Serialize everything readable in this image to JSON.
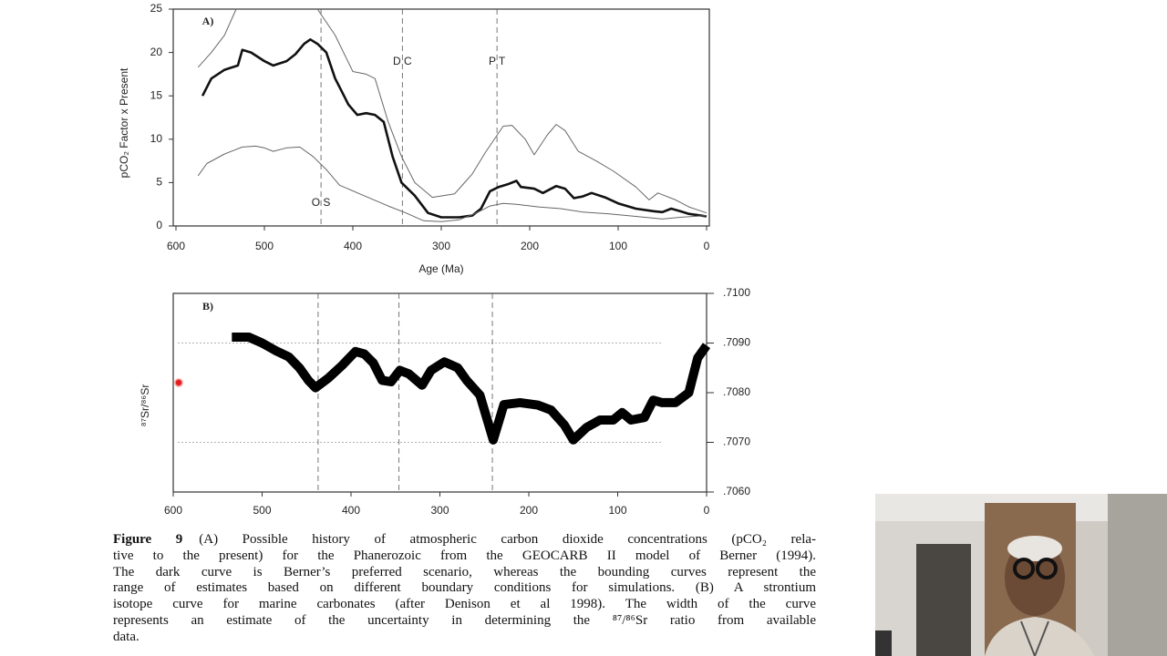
{
  "chart_data": [
    {
      "type": "line",
      "panel_label": "A)",
      "ylabel": "pCO₂ Factor x Present",
      "xlabel": "Age (Ma)",
      "xlim": [
        600,
        0
      ],
      "xticks": [
        600,
        500,
        400,
        300,
        200,
        100,
        0
      ],
      "ylim": [
        0,
        25
      ],
      "yticks": [
        0,
        5,
        10,
        15,
        20,
        25
      ],
      "annotations": [
        {
          "x": 436,
          "label": "O S"
        },
        {
          "x": 344,
          "label": "D C"
        },
        {
          "x": 237,
          "label": "P T"
        }
      ],
      "series": [
        {
          "color": "#666666",
          "line_width": 1,
          "x": [
            575,
            560,
            545,
            532,
            486,
            440,
            420,
            400,
            385,
            375,
            360,
            345,
            330,
            310,
            285,
            265,
            250,
            230,
            220,
            205,
            195,
            180,
            170,
            160,
            145,
            125,
            105,
            80,
            65,
            55,
            35,
            20,
            0
          ],
          "values": [
            18.3,
            20,
            22,
            25,
            null,
            25,
            22,
            17.8,
            17.5,
            17,
            12,
            8,
            5,
            3.3,
            3.7,
            6,
            8.5,
            11.5,
            11.6,
            10,
            8.2,
            10.5,
            11.7,
            11,
            8.6,
            7.5,
            6.3,
            4.5,
            3,
            3.8,
            3,
            2.2,
            1.5
          ]
        },
        {
          "color": "#111111",
          "line_width": 2.6,
          "x": [
            570,
            560,
            545,
            530,
            525,
            515,
            500,
            490,
            475,
            465,
            455,
            448,
            440,
            430,
            420,
            415,
            405,
            395,
            385,
            375,
            365,
            355,
            345,
            330,
            315,
            300,
            280,
            265,
            255,
            245,
            235,
            225,
            215,
            210,
            195,
            185,
            170,
            160,
            150,
            140,
            130,
            115,
            100,
            80,
            60,
            50,
            40,
            30,
            20,
            0
          ],
          "values": [
            15,
            17,
            18,
            18.5,
            20.3,
            20,
            19,
            18.5,
            19,
            19.8,
            21,
            21.5,
            21,
            20,
            17,
            16,
            14,
            12.8,
            13,
            12.8,
            12,
            8,
            5,
            3.5,
            1.5,
            1,
            1,
            1.2,
            2,
            4,
            4.5,
            4.8,
            5.2,
            4.5,
            4.3,
            3.8,
            4.6,
            4.3,
            3.2,
            3.4,
            3.8,
            3.3,
            2.6,
            2,
            1.7,
            1.6,
            2,
            1.7,
            1.4,
            1.1
          ]
        },
        {
          "color": "#666666",
          "line_width": 1,
          "x": [
            575,
            565,
            545,
            525,
            510,
            500,
            490,
            475,
            460,
            445,
            430,
            415,
            390,
            360,
            340,
            320,
            300,
            280,
            260,
            245,
            230,
            215,
            190,
            165,
            140,
            110,
            80,
            50,
            30,
            0
          ],
          "values": [
            5.8,
            7.2,
            8.3,
            9.1,
            9.2,
            9,
            8.6,
            9,
            9.1,
            8,
            6.5,
            4.7,
            3.6,
            2.3,
            1.5,
            0.6,
            0.5,
            0.7,
            1.5,
            2.3,
            2.6,
            2.5,
            2.2,
            2,
            1.6,
            1.4,
            1.1,
            0.8,
            1,
            1.2
          ]
        }
      ]
    },
    {
      "type": "line",
      "panel_label": "B)",
      "ylabel": "⁸⁷Sr/⁸⁶Sr",
      "xlim": [
        600,
        0
      ],
      "xticks": [
        600,
        500,
        400,
        300,
        200,
        100,
        0
      ],
      "ylim": [
        0.706,
        0.71
      ],
      "yticks": [
        {
          "value": 0.706,
          "label": ".7060"
        },
        {
          "value": 0.707,
          "label": ".7070"
        },
        {
          "value": 0.708,
          "label": ".7080"
        },
        {
          "value": 0.709,
          "label": ".7090"
        },
        {
          "value": 0.71,
          "label": ".7100"
        }
      ],
      "gridlines": [
        0.707,
        0.709
      ],
      "annotations": [
        {
          "x": 437
        },
        {
          "x": 346
        },
        {
          "x": 241
        }
      ],
      "series": [
        {
          "color": "#000000",
          "line_width": 10,
          "x": [
            534,
            515,
            500,
            485,
            470,
            458,
            448,
            440,
            425,
            410,
            395,
            385,
            375,
            365,
            355,
            345,
            335,
            320,
            310,
            295,
            280,
            270,
            255,
            240,
            228,
            210,
            190,
            175,
            160,
            150,
            135,
            120,
            105,
            95,
            85,
            70,
            60,
            50,
            35,
            20,
            10,
            0
          ],
          "values": [
            0.70912,
            0.70912,
            0.709,
            0.70885,
            0.70872,
            0.7085,
            0.70825,
            0.7081,
            0.7083,
            0.70855,
            0.70883,
            0.70878,
            0.7086,
            0.70825,
            0.70822,
            0.70845,
            0.70838,
            0.70815,
            0.70845,
            0.70862,
            0.7085,
            0.70825,
            0.70795,
            0.70705,
            0.70776,
            0.7078,
            0.70775,
            0.70765,
            0.70735,
            0.70705,
            0.7073,
            0.70745,
            0.70745,
            0.7076,
            0.70745,
            0.7075,
            0.70785,
            0.7078,
            0.7078,
            0.708,
            0.7087,
            0.70895
          ]
        }
      ]
    }
  ],
  "caption": {
    "label": "Figure 9",
    "lines": [
      "(A) Possible history of atmospheric carbon dioxide concentrations (pCO₂ rela-",
      "tive to the present) for the Phanerozoic from the GEOCARB II model of Berner (1994).",
      "The dark curve is Berner’s preferred scenario, whereas the bounding curves represent the",
      "range of estimates based on different boundary conditions for simulations. (B) A strontium",
      "isotope curve for marine carbonates (after Denison et al 1998). The width of the curve",
      "represents an estimate of the uncertainty in determining the ⁸⁷/⁸⁶Sr ratio from available",
      "data."
    ]
  }
}
